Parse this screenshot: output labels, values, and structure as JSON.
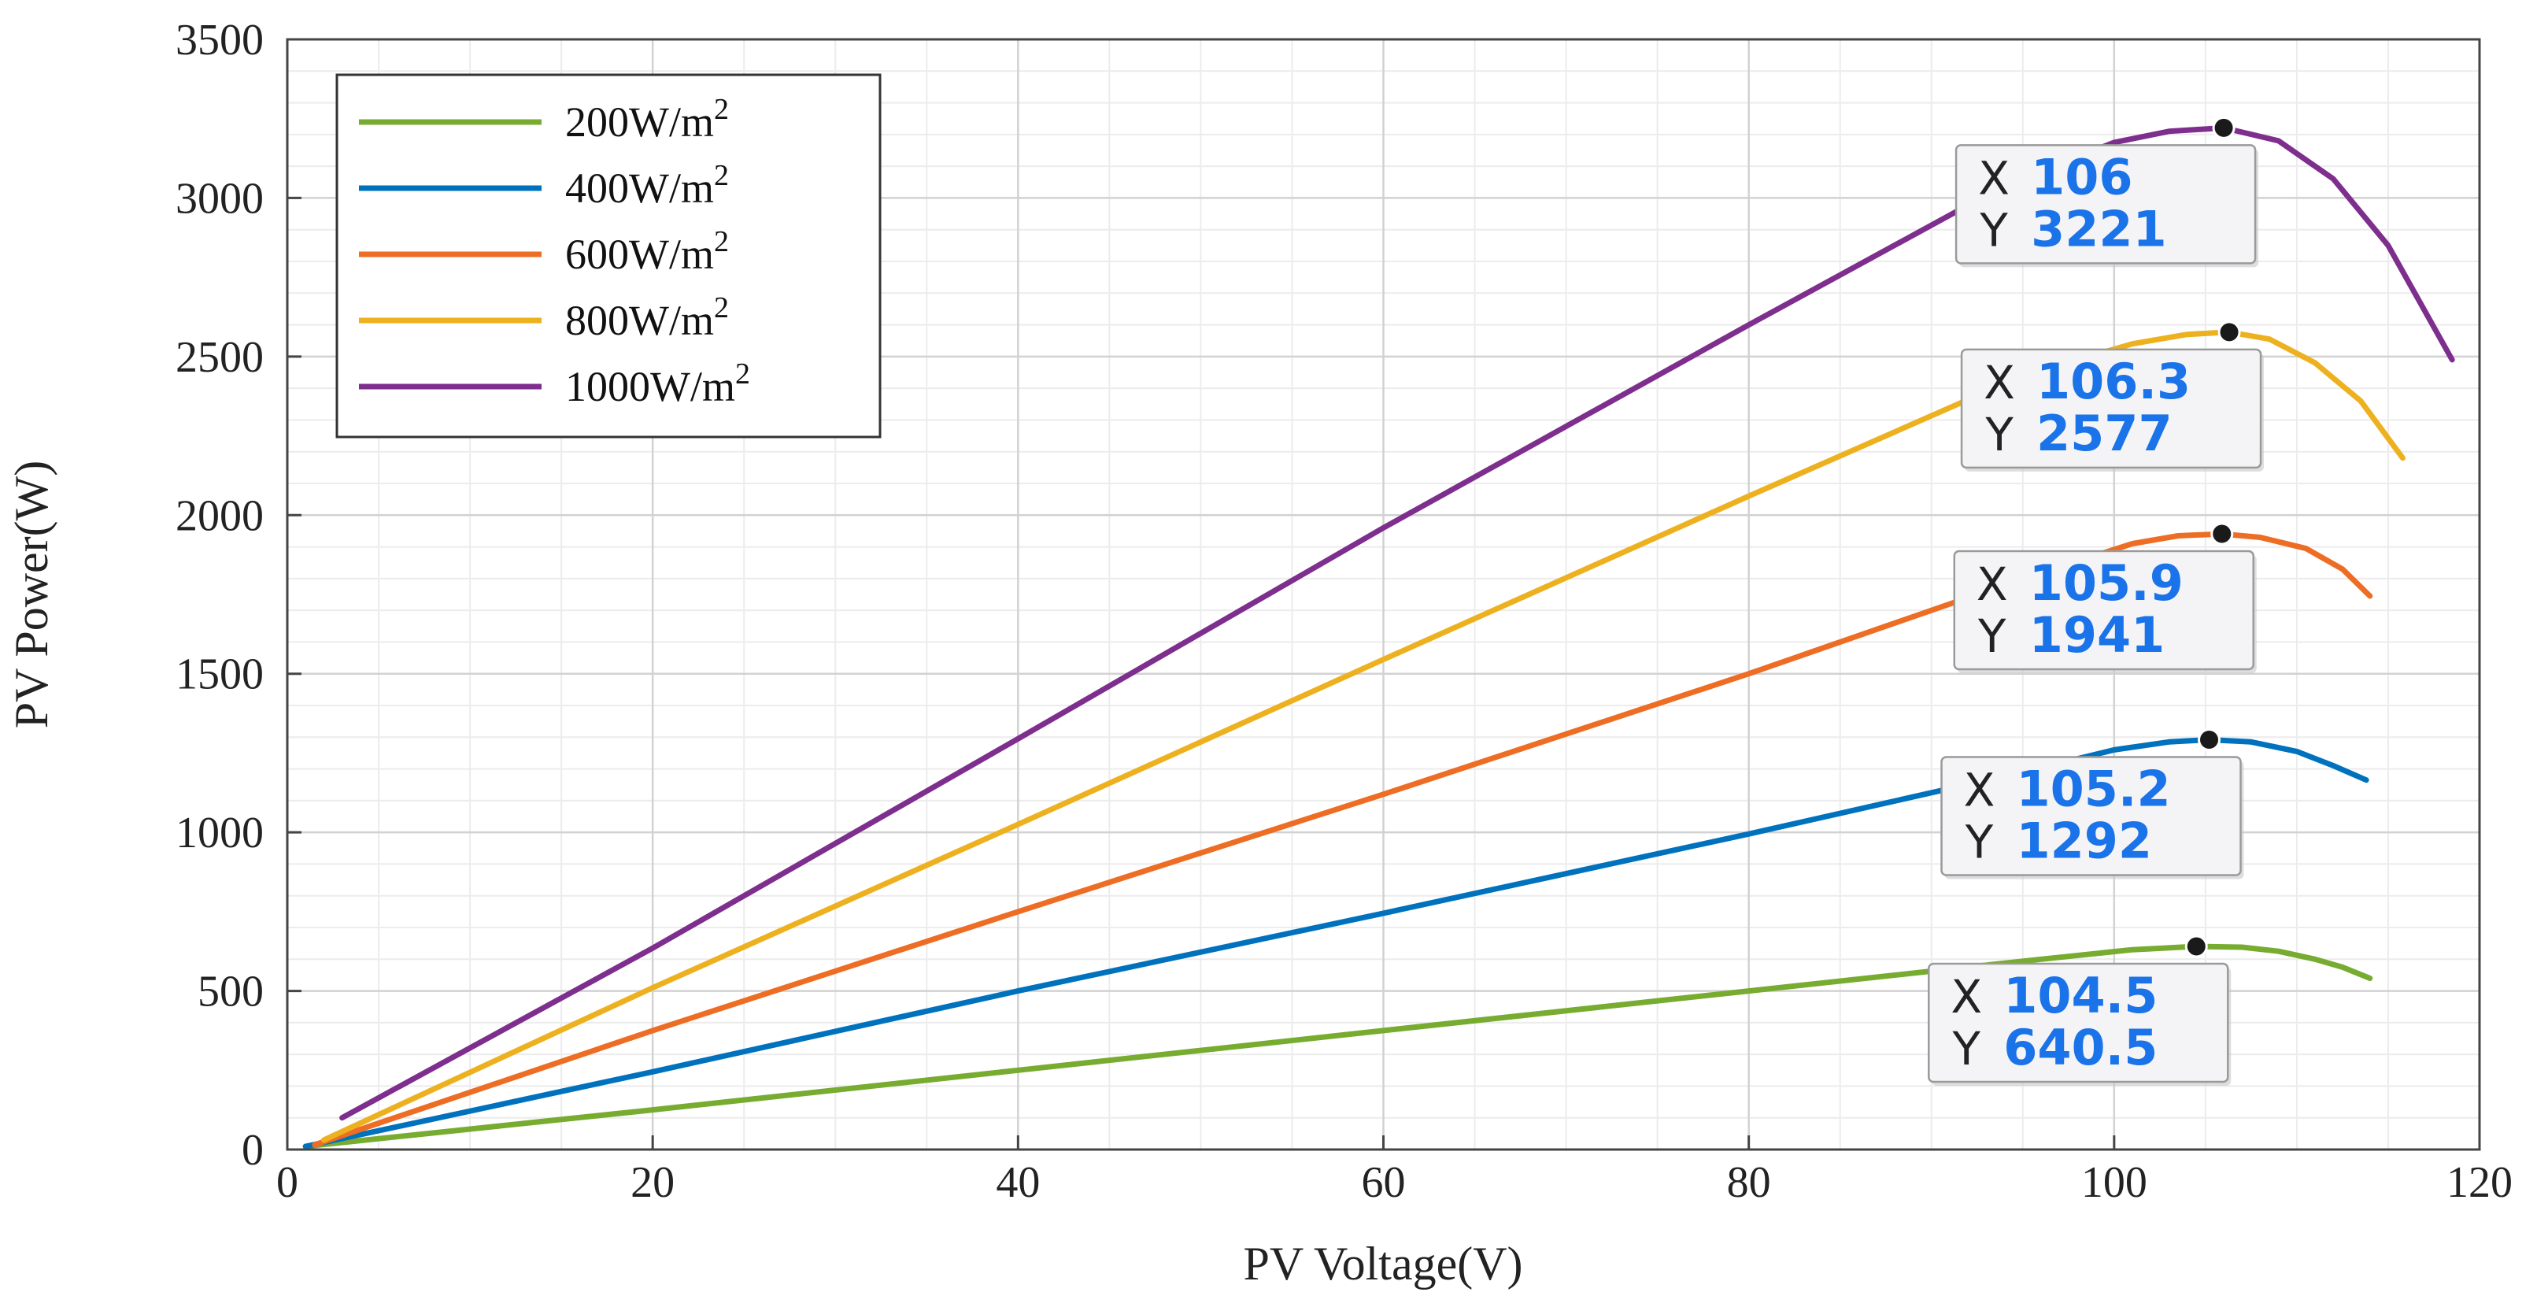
{
  "chart_data": {
    "type": "line",
    "title": "",
    "xlabel": "PV Voltage(V)",
    "ylabel": "PV Power(W)",
    "xlim": [
      0,
      120
    ],
    "ylim": [
      0,
      3500
    ],
    "xticks": [
      0,
      20,
      40,
      60,
      80,
      100,
      120
    ],
    "yticks": [
      0,
      500,
      1000,
      1500,
      2000,
      2500,
      3000,
      3500
    ],
    "grid": true,
    "legend_position": "top-left",
    "series": [
      {
        "name": "200W/m2",
        "label_base": "200W/m",
        "label_sup": "2",
        "color": "#77AC30",
        "points": [
          [
            1,
            10
          ],
          [
            20,
            125
          ],
          [
            40,
            250
          ],
          [
            60,
            375
          ],
          [
            80,
            500
          ],
          [
            96,
            600
          ],
          [
            101,
            630
          ],
          [
            104.5,
            640.5
          ],
          [
            107,
            638
          ],
          [
            109,
            625
          ],
          [
            111,
            600
          ],
          [
            112.5,
            575
          ],
          [
            114,
            540
          ]
        ],
        "datatip": {
          "x_label": "X",
          "y_label": "Y",
          "x": "104.5",
          "y": "640.5",
          "xv": 104.5,
          "yv": 640.5
        }
      },
      {
        "name": "400W/m2",
        "label_base": "400W/m",
        "label_sup": "2",
        "color": "#0072BD",
        "points": [
          [
            1,
            10
          ],
          [
            20,
            245
          ],
          [
            40,
            500
          ],
          [
            60,
            745
          ],
          [
            80,
            995
          ],
          [
            95,
            1190
          ],
          [
            100,
            1260
          ],
          [
            103,
            1285
          ],
          [
            105.2,
            1292
          ],
          [
            107.5,
            1285
          ],
          [
            110,
            1255
          ],
          [
            112,
            1210
          ],
          [
            113.8,
            1165
          ]
        ],
        "datatip": {
          "x_label": "X",
          "y_label": "Y",
          "x": "105.2",
          "y": "1292",
          "xv": 105.2,
          "yv": 1292
        }
      },
      {
        "name": "600W/m2",
        "label_base": "600W/m",
        "label_sup": "2",
        "color": "#EE6D24",
        "points": [
          [
            1.5,
            15
          ],
          [
            20,
            375
          ],
          [
            40,
            750
          ],
          [
            60,
            1120
          ],
          [
            80,
            1500
          ],
          [
            95,
            1800
          ],
          [
            101,
            1910
          ],
          [
            103.5,
            1935
          ],
          [
            105.9,
            1941
          ],
          [
            108,
            1930
          ],
          [
            110.5,
            1895
          ],
          [
            112.5,
            1830
          ],
          [
            114,
            1745
          ]
        ],
        "datatip": {
          "x_label": "X",
          "y_label": "Y",
          "x": "105.9",
          "y": "1941",
          "xv": 105.9,
          "yv": 1941
        }
      },
      {
        "name": "800W/m2",
        "label_base": "800W/m",
        "label_sup": "2",
        "color": "#EDB120",
        "points": [
          [
            2,
            30
          ],
          [
            20,
            510
          ],
          [
            40,
            1025
          ],
          [
            60,
            1545
          ],
          [
            80,
            2060
          ],
          [
            95,
            2440
          ],
          [
            101,
            2540
          ],
          [
            104,
            2570
          ],
          [
            106.3,
            2577
          ],
          [
            108.5,
            2555
          ],
          [
            111,
            2480
          ],
          [
            113.5,
            2360
          ],
          [
            115.8,
            2180
          ]
        ],
        "datatip": {
          "x_label": "X",
          "y_label": "Y",
          "x": "106.3",
          "y": "2577",
          "xv": 106.3,
          "yv": 2577
        }
      },
      {
        "name": "1000W/m2",
        "label_base": "1000W/m",
        "label_sup": "2",
        "color": "#7E2F8E",
        "points": [
          [
            3,
            100
          ],
          [
            20,
            635
          ],
          [
            40,
            1295
          ],
          [
            60,
            1960
          ],
          [
            80,
            2600
          ],
          [
            94,
            3040
          ],
          [
            100,
            3175
          ],
          [
            103,
            3210
          ],
          [
            106,
            3221
          ],
          [
            109,
            3180
          ],
          [
            112,
            3060
          ],
          [
            115,
            2850
          ],
          [
            118.5,
            2490
          ]
        ],
        "datatip": {
          "x_label": "X",
          "y_label": "Y",
          "x": "106",
          "y": "3221",
          "xv": 106,
          "yv": 3221
        }
      }
    ]
  }
}
